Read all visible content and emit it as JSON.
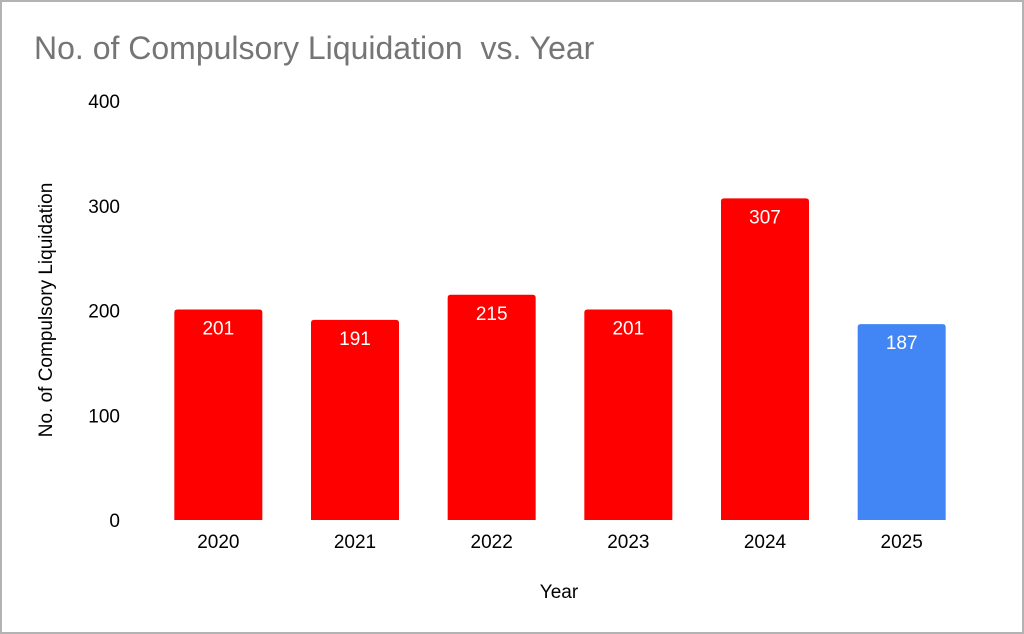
{
  "chart_data": {
    "type": "bar",
    "title": "No. of Compulsory Liquidation  vs. Year",
    "xlabel": "Year",
    "ylabel": "No. of Compulsory Liquidation",
    "categories": [
      "2020",
      "2021",
      "2022",
      "2023",
      "2024",
      "2025"
    ],
    "values": [
      201,
      191,
      215,
      201,
      307,
      187
    ],
    "data_labels": [
      "201",
      "191",
      "215",
      "201",
      "307",
      "187"
    ],
    "bar_colors": [
      "#ff0000",
      "#ff0000",
      "#ff0000",
      "#ff0000",
      "#ff0000",
      "#4285f4"
    ],
    "ylim": [
      0,
      400
    ],
    "yticks": [
      0,
      100,
      200,
      300,
      400
    ],
    "grid": false,
    "legend": "none"
  }
}
